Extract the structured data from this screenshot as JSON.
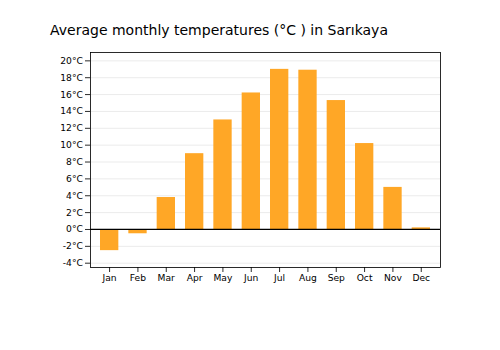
{
  "chart_data": {
    "type": "bar",
    "title": "Average monthly temperatures (°C ) in Sarıkaya",
    "categories": [
      "Jan",
      "Feb",
      "Mar",
      "Apr",
      "May",
      "Jun",
      "Jul",
      "Aug",
      "Sep",
      "Oct",
      "Nov",
      "Dec"
    ],
    "values": [
      -2.5,
      -0.5,
      3.8,
      9.0,
      13.0,
      16.2,
      19.0,
      18.9,
      15.3,
      10.2,
      5.0,
      0.2
    ],
    "color": "#FFA726",
    "ylim": [
      -4.5,
      21
    ],
    "yticks": [
      {
        "value": -4,
        "label": "-4°C"
      },
      {
        "value": -2,
        "label": "-2°C"
      },
      {
        "value": 0,
        "label": "0°C"
      },
      {
        "value": 2,
        "label": "2°C"
      },
      {
        "value": 4,
        "label": "4°C"
      },
      {
        "value": 6,
        "label": "6°C"
      },
      {
        "value": 8,
        "label": "8°C"
      },
      {
        "value": 10,
        "label": "10°C"
      },
      {
        "value": 12,
        "label": "12°C"
      },
      {
        "value": 14,
        "label": "14°C"
      },
      {
        "value": 16,
        "label": "16°C"
      },
      {
        "value": 18,
        "label": "18°C"
      },
      {
        "value": 20,
        "label": "20°C"
      }
    ],
    "grid": true
  }
}
